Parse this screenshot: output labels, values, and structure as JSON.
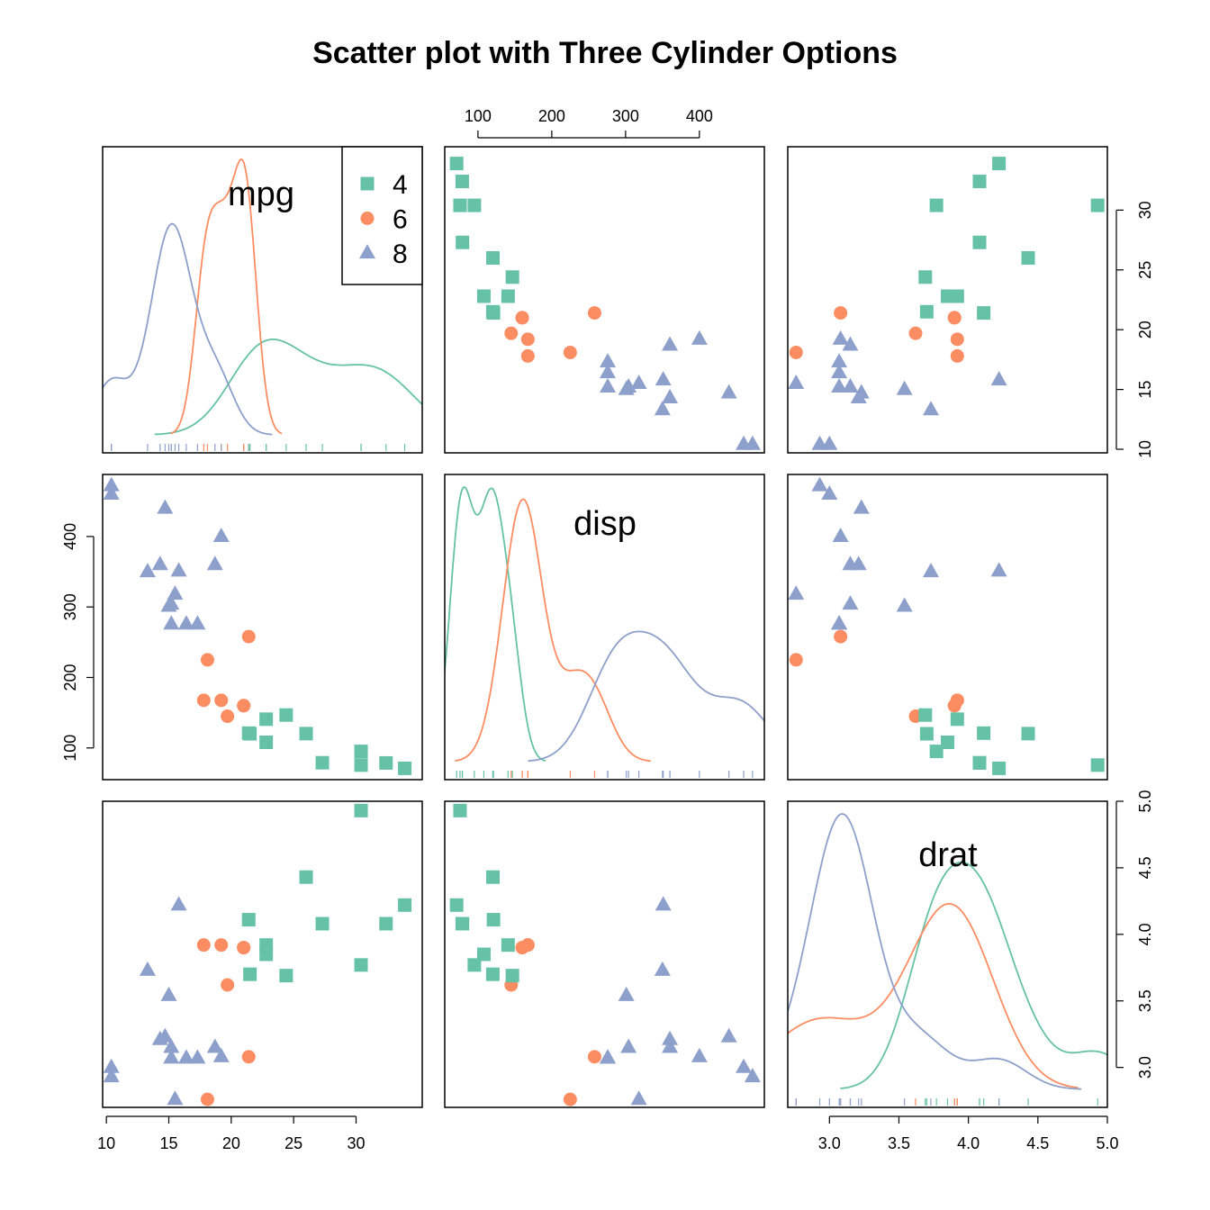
{
  "chart_data": {
    "type": "scatter",
    "title": "Scatter plot with Three Cylinder Options",
    "variables": [
      "mpg",
      "disp",
      "drat"
    ],
    "groups": [
      {
        "name": "4",
        "color": "#66c2a5",
        "shape": "square"
      },
      {
        "name": "6",
        "color": "#fc8d62",
        "shape": "circle"
      },
      {
        "name": "8",
        "color": "#8da0cb",
        "shape": "triangle"
      }
    ],
    "legend": {
      "entries": [
        "4",
        "6",
        "8"
      ],
      "position": "top-right of mpg panel"
    },
    "axes": {
      "mpg": {
        "ticks": [
          10,
          15,
          20,
          25,
          30
        ],
        "range": [
          9.7,
          35.3
        ],
        "tick_labels": [
          "10",
          "15",
          "20",
          "25",
          "30"
        ]
      },
      "disp": {
        "ticks": [
          100,
          200,
          300,
          400
        ],
        "range": [
          55,
          488
        ],
        "tick_labels": [
          "100",
          "200",
          "300",
          "400"
        ]
      },
      "drat": {
        "ticks": [
          3.0,
          3.5,
          4.0,
          4.5,
          5.0
        ],
        "range": [
          2.7,
          5.0
        ],
        "tick_labels": [
          "3.0",
          "3.5",
          "4.0",
          "4.5",
          "5.0"
        ]
      }
    },
    "points": [
      {
        "cyl": "6",
        "mpg": 21.0,
        "disp": 160,
        "drat": 3.9
      },
      {
        "cyl": "6",
        "mpg": 21.0,
        "disp": 160,
        "drat": 3.9
      },
      {
        "cyl": "4",
        "mpg": 22.8,
        "disp": 108,
        "drat": 3.85
      },
      {
        "cyl": "6",
        "mpg": 21.4,
        "disp": 258,
        "drat": 3.08
      },
      {
        "cyl": "8",
        "mpg": 18.7,
        "disp": 360,
        "drat": 3.15
      },
      {
        "cyl": "6",
        "mpg": 18.1,
        "disp": 225,
        "drat": 2.76
      },
      {
        "cyl": "8",
        "mpg": 14.3,
        "disp": 360,
        "drat": 3.21
      },
      {
        "cyl": "4",
        "mpg": 24.4,
        "disp": 146.7,
        "drat": 3.69
      },
      {
        "cyl": "4",
        "mpg": 22.8,
        "disp": 140.8,
        "drat": 3.92
      },
      {
        "cyl": "6",
        "mpg": 19.2,
        "disp": 167.6,
        "drat": 3.92
      },
      {
        "cyl": "6",
        "mpg": 17.8,
        "disp": 167.6,
        "drat": 3.92
      },
      {
        "cyl": "8",
        "mpg": 16.4,
        "disp": 275.8,
        "drat": 3.07
      },
      {
        "cyl": "8",
        "mpg": 17.3,
        "disp": 275.8,
        "drat": 3.07
      },
      {
        "cyl": "8",
        "mpg": 15.2,
        "disp": 275.8,
        "drat": 3.07
      },
      {
        "cyl": "8",
        "mpg": 10.4,
        "disp": 472,
        "drat": 2.93
      },
      {
        "cyl": "8",
        "mpg": 10.4,
        "disp": 460,
        "drat": 3.0
      },
      {
        "cyl": "8",
        "mpg": 14.7,
        "disp": 440,
        "drat": 3.23
      },
      {
        "cyl": "4",
        "mpg": 32.4,
        "disp": 78.7,
        "drat": 4.08
      },
      {
        "cyl": "4",
        "mpg": 30.4,
        "disp": 75.7,
        "drat": 4.93
      },
      {
        "cyl": "4",
        "mpg": 33.9,
        "disp": 71.1,
        "drat": 4.22
      },
      {
        "cyl": "4",
        "mpg": 21.5,
        "disp": 120.1,
        "drat": 3.7
      },
      {
        "cyl": "8",
        "mpg": 15.5,
        "disp": 318,
        "drat": 2.76
      },
      {
        "cyl": "8",
        "mpg": 15.2,
        "disp": 304,
        "drat": 3.15
      },
      {
        "cyl": "8",
        "mpg": 13.3,
        "disp": 350,
        "drat": 3.73
      },
      {
        "cyl": "8",
        "mpg": 19.2,
        "disp": 400,
        "drat": 3.08
      },
      {
        "cyl": "4",
        "mpg": 27.3,
        "disp": 79,
        "drat": 4.08
      },
      {
        "cyl": "4",
        "mpg": 26.0,
        "disp": 120.3,
        "drat": 4.43
      },
      {
        "cyl": "4",
        "mpg": 30.4,
        "disp": 95.1,
        "drat": 3.77
      },
      {
        "cyl": "8",
        "mpg": 15.8,
        "disp": 351,
        "drat": 4.22
      },
      {
        "cyl": "6",
        "mpg": 19.7,
        "disp": 145,
        "drat": 3.62
      },
      {
        "cyl": "8",
        "mpg": 15.0,
        "disp": 301,
        "drat": 3.54
      },
      {
        "cyl": "4",
        "mpg": 21.4,
        "disp": 121,
        "drat": 4.11
      }
    ],
    "diagonal": "kernel density per group with rug",
    "grid": false
  }
}
